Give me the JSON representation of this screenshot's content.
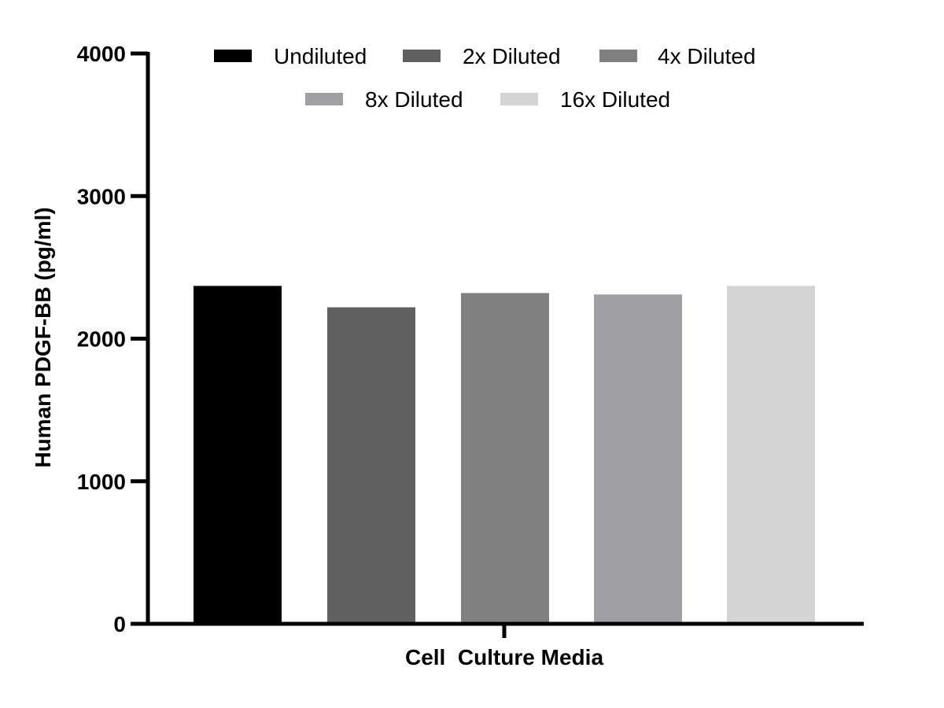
{
  "chart_data": {
    "type": "bar",
    "categories": [
      "Cell  Culture Media"
    ],
    "series": [
      {
        "name": "Undiluted",
        "values": [
          2370
        ],
        "color": "#000000"
      },
      {
        "name": "2x Diluted",
        "values": [
          2220
        ],
        "color": "#606060"
      },
      {
        "name": "4x Diluted",
        "values": [
          2320
        ],
        "color": "#808080"
      },
      {
        "name": "8x Diluted",
        "values": [
          2310
        ],
        "color": "#a0a0a4"
      },
      {
        "name": "16x Diluted",
        "values": [
          2370
        ],
        "color": "#d4d4d4"
      }
    ],
    "title": "",
    "xlabel": "Cell  Culture Media",
    "ylabel": "Human PDGF-BB (pg/ml)",
    "ylim": [
      0,
      4000
    ],
    "yticks": [
      "0",
      "1000",
      "2000",
      "3000",
      "4000"
    ],
    "grid": false,
    "legend_position": "top"
  }
}
